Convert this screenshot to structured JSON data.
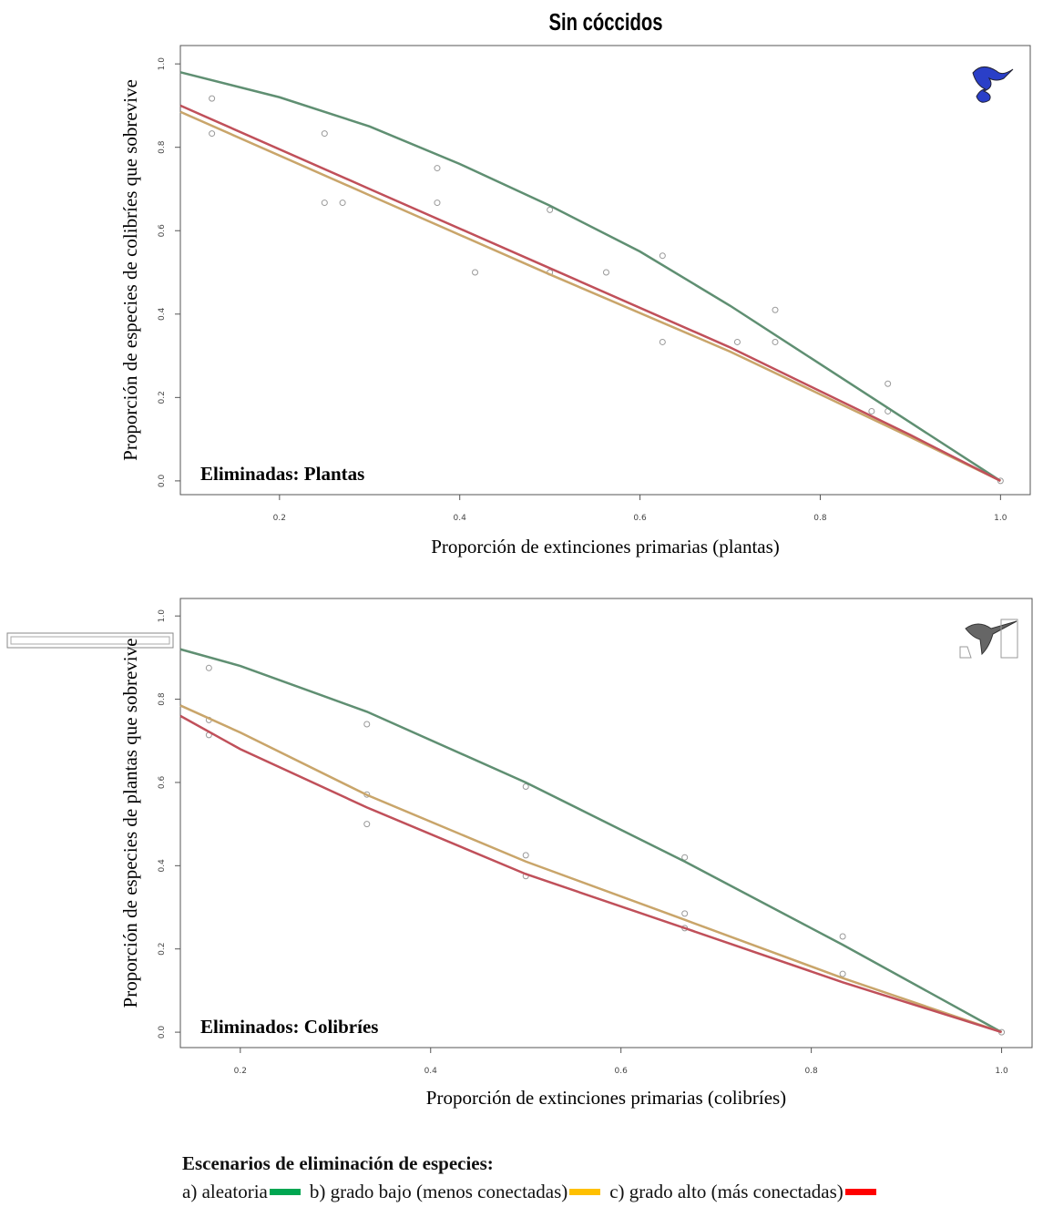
{
  "title": "Sin cóccidos",
  "chart_data": [
    {
      "type": "line",
      "annotation": "Eliminadas: Plantas",
      "xlabel": "Proporción de extinciones primarias (plantas)",
      "ylabel": "Proporción de especies de colibríes que sobrevive",
      "xlim": [
        0.09,
        1.033
      ],
      "ylim": [
        -0.033,
        1.044
      ],
      "xticks": [
        0.2,
        0.4,
        0.6,
        0.8,
        {
          "value": 1,
          "label": "1.0"
        }
      ],
      "yticks": [
        {
          "value": 0,
          "label": "0.0"
        },
        0.2,
        0.4,
        0.6,
        0.8,
        {
          "value": 1,
          "label": "1.0"
        }
      ],
      "series": [
        {
          "color": "#5f8f72",
          "x": [
            0.09,
            0.2,
            0.3,
            0.4,
            0.5,
            0.6,
            0.7,
            0.8,
            0.9,
            1.0
          ],
          "values": [
            0.98,
            0.92,
            0.85,
            0.76,
            0.66,
            0.55,
            0.42,
            0.28,
            0.14,
            0
          ]
        },
        {
          "color": "#c9a56a",
          "x": [
            0.09,
            0.3,
            0.5,
            0.7,
            0.9,
            1.0
          ],
          "values": [
            0.885,
            0.685,
            0.495,
            0.31,
            0.105,
            0
          ]
        },
        {
          "color": "#c0505a",
          "x": [
            0.09,
            0.3,
            0.5,
            0.7,
            0.9,
            1.0
          ],
          "values": [
            0.9,
            0.7,
            0.51,
            0.32,
            0.11,
            0
          ]
        }
      ],
      "points": {
        "color": "#999999",
        "x": [
          0.125,
          0.125,
          0.25,
          0.25,
          0.27,
          0.375,
          0.375,
          0.417,
          0.5,
          0.5,
          0.5625,
          0.625,
          0.625,
          0.708,
          0.75,
          0.75,
          0.857,
          0.875,
          0.875,
          1.0
        ],
        "values": [
          0.917,
          0.833,
          0.833,
          0.667,
          0.667,
          0.75,
          0.667,
          0.5,
          0.65,
          0.5,
          0.5,
          0.54,
          0.333,
          0.333,
          0.41,
          0.333,
          0.167,
          0.233,
          0.167,
          0
        ]
      }
    },
    {
      "type": "line",
      "annotation": "Eliminados: Colibríes",
      "xlabel": "Proporción de extinciones primarias (colibríes)",
      "ylabel": "Proporción de especies de plantas que sobrevive",
      "xlim": [
        0.137,
        1.032
      ],
      "ylim": [
        -0.037,
        1.042
      ],
      "xticks": [
        0.2,
        0.4,
        0.6,
        0.8,
        {
          "value": 1,
          "label": "1.0"
        }
      ],
      "yticks": [
        {
          "value": 0,
          "label": "0.0"
        },
        0.2,
        0.4,
        0.6,
        0.8,
        {
          "value": 1,
          "label": "1.0"
        }
      ],
      "series": [
        {
          "color": "#5f8f72",
          "x": [
            0.137,
            0.2,
            0.333,
            0.5,
            0.667,
            0.833,
            1.0
          ],
          "values": [
            0.92,
            0.88,
            0.77,
            0.6,
            0.41,
            0.21,
            0
          ]
        },
        {
          "color": "#c9a56a",
          "x": [
            0.137,
            0.2,
            0.333,
            0.5,
            0.667,
            0.833,
            1.0
          ],
          "values": [
            0.785,
            0.72,
            0.57,
            0.41,
            0.27,
            0.13,
            0
          ]
        },
        {
          "color": "#c0505a",
          "x": [
            0.137,
            0.2,
            0.333,
            0.5,
            0.667,
            0.833,
            1.0
          ],
          "values": [
            0.76,
            0.68,
            0.54,
            0.38,
            0.25,
            0.12,
            0
          ]
        }
      ],
      "points": {
        "color": "#999999",
        "x": [
          0.167,
          0.167,
          0.167,
          0.333,
          0.333,
          0.333,
          0.5,
          0.5,
          0.5,
          0.667,
          0.667,
          0.667,
          0.833,
          0.833,
          1.0
        ],
        "values": [
          0.875,
          0.75,
          0.714,
          0.74,
          0.571,
          0.5,
          0.59,
          0.425,
          0.375,
          0.42,
          0.285,
          0.25,
          0.23,
          0.14,
          0
        ]
      }
    }
  ],
  "legend": {
    "title": "Escenarios de eliminación de especies:",
    "items": [
      {
        "label": "a) aleatoria",
        "color": "#00a651"
      },
      {
        "label": "b) grado bajo (menos conectadas)",
        "color": "#ffc000"
      },
      {
        "label": "c) grado alto (más conectadas)",
        "color": "#ff0000"
      }
    ]
  }
}
